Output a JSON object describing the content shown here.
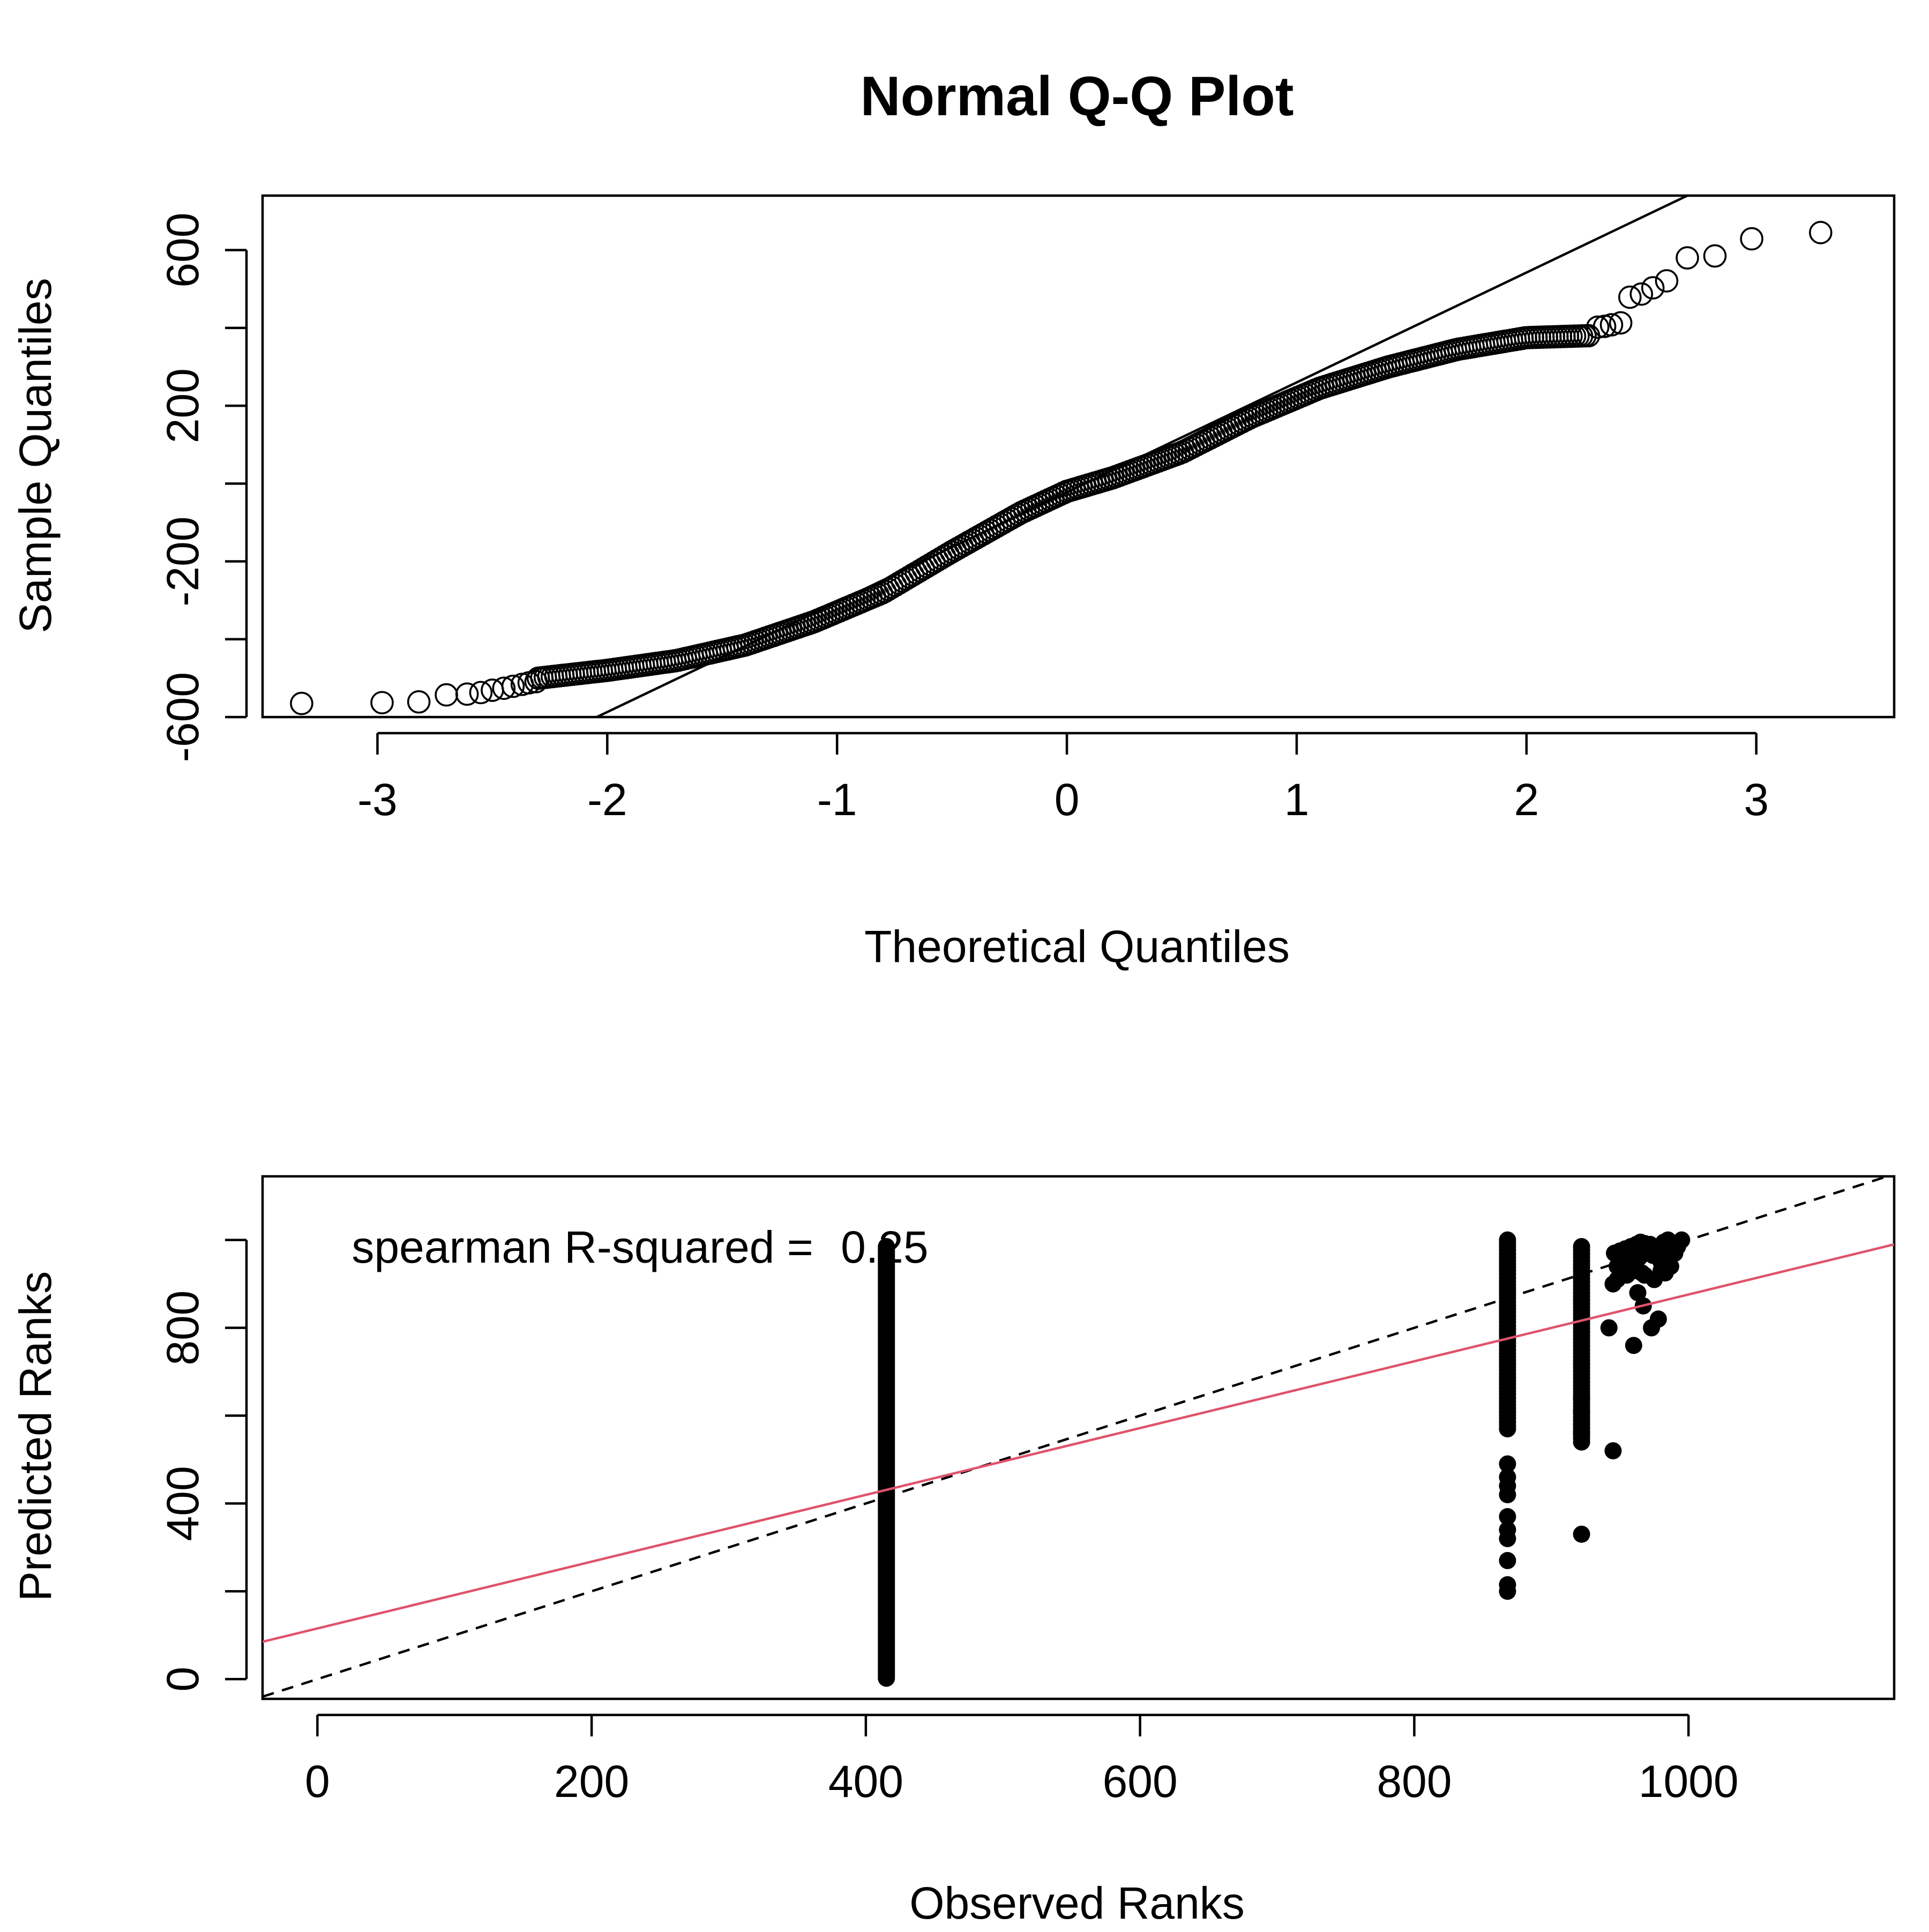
{
  "chart_data": [
    {
      "type": "scatter",
      "title": "Normal Q-Q Plot",
      "xlabel": "Theoretical Quantiles",
      "ylabel": "Sample Quantiles",
      "xlim": [
        -3.5,
        3.6
      ],
      "ylim": [
        -600,
        740
      ],
      "xticks": [
        -3,
        -2,
        -1,
        0,
        1,
        2,
        3
      ],
      "xtick_labels": [
        "-3",
        "-2",
        "-1",
        "0",
        "1",
        "2",
        "3"
      ],
      "yticks": [
        -600,
        -400,
        -200,
        0,
        200,
        400,
        600
      ],
      "ytick_labels": [
        "-600",
        "",
        "-200",
        "",
        "200",
        "",
        "600"
      ],
      "marker": "open-circle",
      "qq_profile": {
        "theoretical": [
          -2.3,
          -2.0,
          -1.7,
          -1.4,
          -1.1,
          -0.8,
          -0.5,
          -0.2,
          0.0,
          0.2,
          0.5,
          0.8,
          1.1,
          1.4,
          1.7,
          2.0,
          2.27
        ],
        "sample": [
          -500,
          -480,
          -455,
          -415,
          -355,
          -280,
          -175,
          -75,
          -20,
          15,
          80,
          170,
          245,
          300,
          345,
          375,
          380
        ]
      },
      "tail_points": {
        "x": [
          -3.33,
          -2.98,
          -2.82,
          -2.7,
          -2.61,
          -2.55,
          -2.5,
          -2.45,
          -2.41,
          -2.37,
          -2.34,
          -2.31,
          2.31,
          2.34,
          2.37,
          2.41,
          2.45,
          2.5,
          2.55,
          2.61,
          2.7,
          2.82,
          2.98,
          3.28
        ],
        "y": [
          -565,
          -563,
          -561,
          -543,
          -541,
          -537,
          -531,
          -526,
          -521,
          -516,
          -512,
          -509,
          402,
          404,
          408,
          413,
          479,
          487,
          503,
          521,
          580,
          585,
          629,
          645
        ]
      },
      "reference_line": {
        "x": [
          -2.4,
          2.7
        ],
        "y": [
          -700,
          740
        ]
      },
      "grid": false
    },
    {
      "type": "scatter",
      "xlabel": "Observed Ranks",
      "ylabel": "Predicted Ranks",
      "xlim": [
        -40,
        1150
      ],
      "ylim": [
        -45,
        1145
      ],
      "xticks": [
        0,
        200,
        400,
        600,
        800,
        1000
      ],
      "xtick_labels": [
        "0",
        "200",
        "400",
        "600",
        "800",
        "1000"
      ],
      "yticks": [
        0,
        200,
        400,
        600,
        800,
        1000
      ],
      "ytick_labels": [
        "0",
        "",
        "400",
        "",
        "800",
        ""
      ],
      "marker": "filled-circle",
      "annotation": {
        "label": "spearman R-squared = ",
        "value": "0.25",
        "x": 25,
        "y": 985
      },
      "column_series": [
        {
          "x": 415,
          "y_from": 2,
          "y_to": 985
        },
        {
          "x": 868,
          "y_from": 570,
          "y_to": 1000
        },
        {
          "x": 922,
          "y_from": 540,
          "y_to": 985
        }
      ],
      "points": {
        "x": [
          868,
          868,
          868,
          868,
          868,
          868,
          868,
          868,
          868,
          868,
          922,
          922,
          922,
          922,
          922,
          945,
          942,
          946,
          950,
          954,
          958,
          962,
          965,
          968,
          972,
          975,
          978,
          982,
          985,
          988,
          992,
          995,
          948,
          952,
          956,
          960,
          964,
          970,
          974,
          980,
          986,
          990,
          945,
          948,
          955,
          960,
          966,
          968,
          975,
          980,
          983,
          987,
          960,
          963,
          967,
          973,
          978
        ],
        "y": [
          200,
          215,
          270,
          320,
          340,
          370,
          420,
          440,
          460,
          490,
          330,
          560,
          580,
          610,
          640,
          520,
          800,
          970,
          975,
          980,
          985,
          990,
          995,
          992,
          990,
          985,
          980,
          995,
          1000,
          990,
          985,
          1000,
          940,
          950,
          955,
          945,
          960,
          970,
          965,
          950,
          960,
          970,
          900,
          910,
          920,
          930,
          925,
          920,
          910,
          930,
          925,
          940,
          760,
          880,
          850,
          800,
          820
        ]
      },
      "identity_line": {
        "x": [
          -40,
          1150
        ],
        "y": [
          -40,
          1150
        ]
      },
      "fit_line": {
        "x": [
          -40,
          1150
        ],
        "y": [
          85,
          990
        ],
        "color": "#DF536B"
      },
      "grid": false
    }
  ]
}
